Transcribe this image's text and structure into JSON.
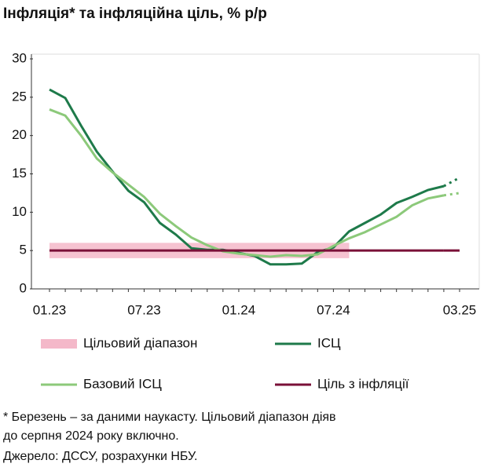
{
  "chart_data": {
    "type": "line",
    "title": "Інфляція* та інфляційна ціль, % р/р",
    "categories": [
      "01.23",
      null,
      null,
      null,
      null,
      null,
      "07.23",
      null,
      null,
      null,
      null,
      null,
      "01.24",
      null,
      null,
      null,
      null,
      null,
      "07.24",
      null,
      null,
      null,
      null,
      null,
      null,
      null,
      "03.25"
    ],
    "series": [
      {
        "name": "Цільовий діапазон",
        "type": "band",
        "color": "#f4b8c9",
        "lower": [
          4,
          4,
          4,
          4,
          4,
          4,
          4,
          4,
          4,
          4,
          4,
          4,
          4,
          4,
          4,
          4,
          4,
          4,
          4,
          4,
          null,
          null,
          null,
          null,
          null,
          null,
          null
        ],
        "upper": [
          6,
          6,
          6,
          6,
          6,
          6,
          6,
          6,
          6,
          6,
          6,
          6,
          6,
          6,
          6,
          6,
          6,
          6,
          6,
          6,
          null,
          null,
          null,
          null,
          null,
          null,
          null
        ]
      },
      {
        "name": "ІСЦ",
        "color": "#1e7a4a",
        "values": [
          26.0,
          24.9,
          21.3,
          17.9,
          15.3,
          12.8,
          11.3,
          8.6,
          7.1,
          5.3,
          5.1,
          5.1,
          4.7,
          4.3,
          3.2,
          3.2,
          3.3,
          4.8,
          5.4,
          7.5,
          8.6,
          9.7,
          11.2,
          12.0,
          12.9,
          13.4,
          14.5
        ]
      },
      {
        "name": "Базовий ІСЦ",
        "color": "#8cc97a",
        "values": [
          23.4,
          22.6,
          20.0,
          17.0,
          15.2,
          13.6,
          12.0,
          9.8,
          8.2,
          6.7,
          5.7,
          4.9,
          4.6,
          4.4,
          4.2,
          4.4,
          4.3,
          4.5,
          5.6,
          6.6,
          7.4,
          8.4,
          9.4,
          10.9,
          11.8,
          12.2,
          12.5
        ]
      },
      {
        "name": "Ціль з інфляції",
        "color": "#7a1038",
        "values": [
          5,
          5,
          5,
          5,
          5,
          5,
          5,
          5,
          5,
          5,
          5,
          5,
          5,
          5,
          5,
          5,
          5,
          5,
          5,
          5,
          5,
          5,
          5,
          5,
          5,
          5,
          5
        ]
      }
    ],
    "ylim": [
      0,
      30
    ],
    "yticks": [
      0,
      5,
      10,
      15,
      20,
      25,
      30
    ],
    "notes": [
      "* Березень – за даними наукасту. Цільовий діапазон діяв",
      "до серпня 2024 року включно.",
      "Джерело: ДССУ, розрахунки НБУ."
    ]
  }
}
